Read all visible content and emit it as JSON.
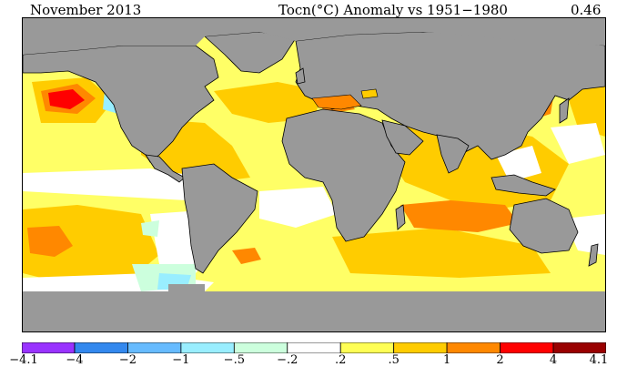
{
  "header": {
    "period": "November 2013",
    "title": "Tocn(°C) Anomaly vs 1951−1980",
    "global_mean": "0.46"
  },
  "map": {
    "projection": "equirectangular",
    "colors": {
      "land": "#999999",
      "ocean_neutral": "#ffffff",
      "coastline": "#000000"
    }
  },
  "legend": {
    "ticks": [
      "−4.1",
      "−4",
      "−2",
      "−1",
      "−.5",
      "−.2",
      ".2",
      ".5",
      "1",
      "2",
      "4",
      "4.1"
    ],
    "bins": [
      {
        "from": -4.1,
        "to": -4,
        "color": "#9933ff"
      },
      {
        "from": -4,
        "to": -2,
        "color": "#3388ee"
      },
      {
        "from": -2,
        "to": -1,
        "color": "#66bbff"
      },
      {
        "from": -1,
        "to": -0.5,
        "color": "#99eeff"
      },
      {
        "from": -0.5,
        "to": -0.2,
        "color": "#ccffdd"
      },
      {
        "from": -0.2,
        "to": 0.2,
        "color": "#ffffff"
      },
      {
        "from": 0.2,
        "to": 0.5,
        "color": "#ffff55"
      },
      {
        "from": 0.5,
        "to": 1,
        "color": "#ffcc00"
      },
      {
        "from": 1,
        "to": 2,
        "color": "#ff8800"
      },
      {
        "from": 2,
        "to": 4,
        "color": "#ff0000"
      },
      {
        "from": 4,
        "to": 4.1,
        "color": "#990000"
      }
    ]
  }
}
